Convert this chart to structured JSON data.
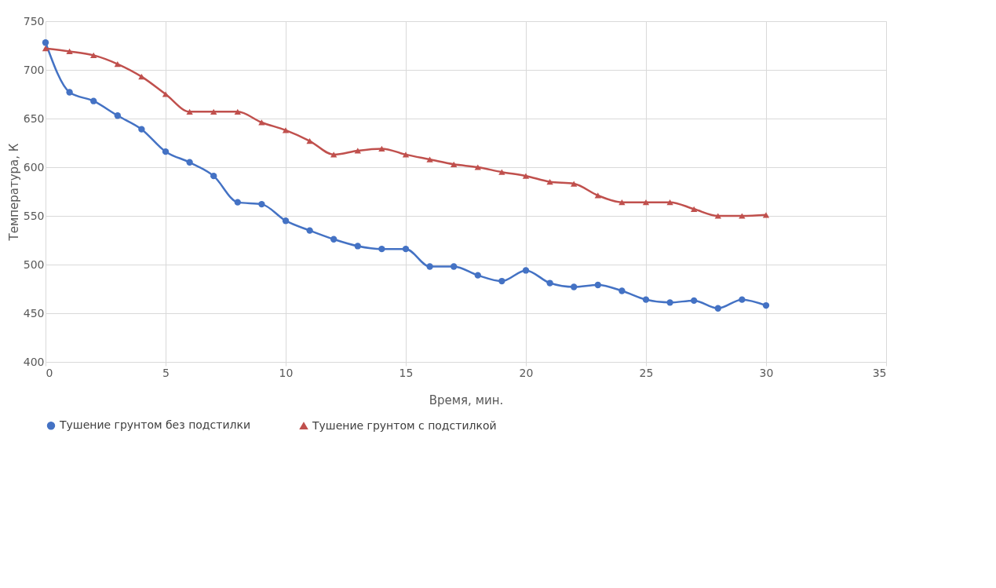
{
  "chart_data": {
    "type": "line",
    "xlabel": "Время, мин.",
    "ylabel": "Температура, К",
    "x": [
      0,
      1,
      2,
      3,
      4,
      5,
      6,
      7,
      8,
      9,
      10,
      11,
      12,
      13,
      14,
      15,
      16,
      17,
      18,
      19,
      20,
      21,
      22,
      23,
      24,
      25,
      26,
      27,
      28,
      29,
      30
    ],
    "series": [
      {
        "name": "Тушение грунтом без подстилки",
        "color": "#4472c4",
        "marker": "circle",
        "values": [
          728,
          677,
          668,
          653,
          639,
          616,
          605,
          591,
          564,
          562,
          545,
          535,
          526,
          519,
          516,
          516,
          498,
          498,
          489,
          483,
          494,
          481,
          477,
          479,
          473,
          464,
          461,
          463,
          455,
          464,
          458
        ]
      },
      {
        "name": "Тушение грунтом с подстилкой",
        "color": "#c0504d",
        "marker": "triangle",
        "values": [
          722,
          719,
          715,
          706,
          693,
          675,
          657,
          657,
          657,
          646,
          638,
          627,
          613,
          617,
          619,
          613,
          608,
          603,
          600,
          595,
          591,
          585,
          583,
          571,
          564,
          564,
          564,
          557,
          550,
          550,
          551
        ]
      }
    ],
    "xlim": [
      0,
      35
    ],
    "xticks": [
      0,
      5,
      10,
      15,
      20,
      25,
      30,
      35
    ],
    "ylim": [
      400,
      750
    ],
    "yticks": [
      400,
      450,
      500,
      550,
      600,
      650,
      700,
      750
    ],
    "grid": true,
    "legend": "bottom",
    "line_style": "solid"
  }
}
